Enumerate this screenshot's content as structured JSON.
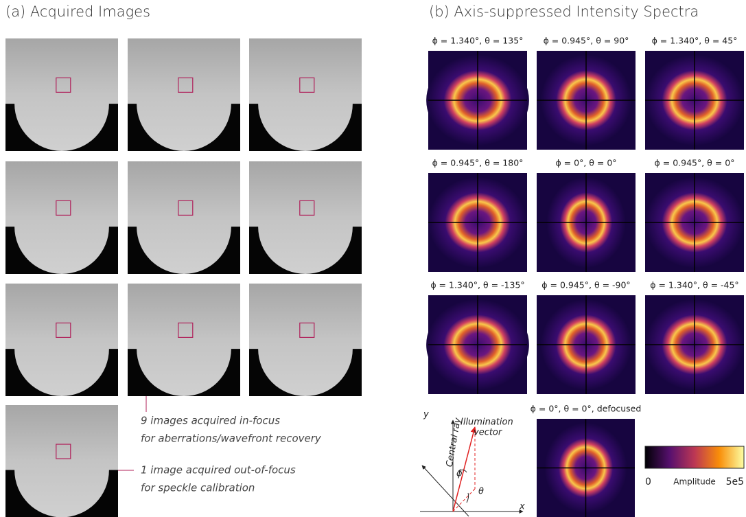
{
  "panel_a": {
    "title": "(a)  Acquired Images",
    "annotations": [
      {
        "lines": [
          "9 images acquired in-focus",
          "for aberrations/wavefront recovery"
        ]
      },
      {
        "lines": [
          "1 image acquired out-of-focus",
          "for speckle calibration"
        ]
      }
    ]
  },
  "panel_b": {
    "title": "(b)  Axis-suppressed Intensity Spectra",
    "spectra_labels": [
      "ϕ = 1.340°, θ = 135°",
      "ϕ = 0.945°, θ = 90°",
      "ϕ = 1.340°, θ = 45°",
      "ϕ = 0.945°, θ = 180°",
      "ϕ = 0°, θ = 0°",
      "ϕ = 0.945°, θ = 0°",
      "ϕ = 1.340°, θ = -135°",
      "ϕ = 0.945°, θ = -90°",
      "ϕ = 1.340°, θ = -45°",
      "ϕ = 0°, θ = 0°, defocused"
    ],
    "diagram": {
      "axis_y": "y",
      "axis_x": "x",
      "central_ray": "Central ray",
      "illumination_vector": [
        "Illumination",
        "vector"
      ],
      "phi": "ϕ",
      "theta": "θ"
    },
    "colorbar": {
      "min": "0",
      "label": "Amplitude",
      "max": "5e5"
    }
  }
}
